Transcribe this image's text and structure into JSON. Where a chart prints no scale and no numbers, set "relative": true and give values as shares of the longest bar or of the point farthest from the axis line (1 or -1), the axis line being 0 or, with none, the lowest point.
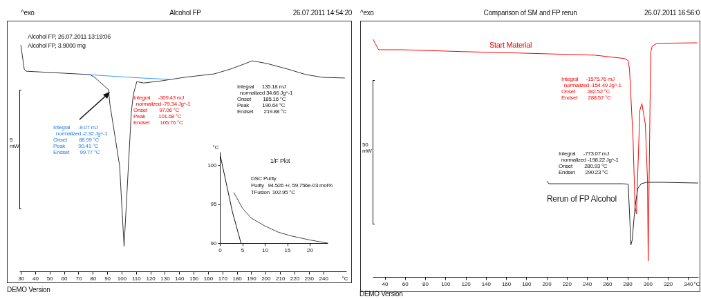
{
  "chart_data": [
    {
      "type": "line",
      "title": "Alcohol FP",
      "relative": true,
      "xlabel": "°C",
      "xlim": [
        29,
        256
      ],
      "xticks": [
        30,
        40,
        50,
        60,
        70,
        80,
        90,
        100,
        110,
        120,
        130,
        140,
        150,
        160,
        170,
        180,
        190,
        200,
        210,
        220,
        230,
        240
      ],
      "annotations": [
        "^exo",
        "26.07.2011 14:54:20",
        "Alcohol FP, 26.07.2011 13:19:06",
        "Alcohol FP, 3.9000 mg",
        "Integral      -9.07 mJ\n  normalized -2.32 Jg^-1\nOnset         88.99 °C\nPeak          90.41 °C\nEndset        99.77 °C",
        "Integral      -309.43 mJ\n  normalized -79.34 Jg^-1\nOnset         97.06 °C\nPeak          101.68 °C\nEndset        105.76 °C",
        "Integral      135.18 mJ\n  normalized 34.66 Jg^-1\nOnset         185.16 °C\nPeak          190.64 °C\nEndset        219.88 °C",
        "5\nmW",
        "DEMO Version"
      ],
      "series": [
        {
          "color": "#333333",
          "x": [
            30,
            32.4,
            33.8,
            77.9,
            81.3,
            90.9,
            91.8,
            98.6,
            101.7,
            106.7,
            108.1,
            110.5,
            115.3,
            127.3,
            143.6,
            164.2,
            175.3,
            184.8,
            190.6,
            200.9,
            215.5,
            228,
            239.5,
            255
          ],
          "values": [
            1,
            0.893,
            0.884,
            0.869,
            0.857,
            0.802,
            0.741,
            0.466,
            0.11,
            0.701,
            0.78,
            0.838,
            0.832,
            0.841,
            0.857,
            0.872,
            0.893,
            0.915,
            0.93,
            0.918,
            0.893,
            0.869,
            0.857,
            0.854
          ]
        },
        {
          "color": "#3399ff",
          "x": [
            77,
            90.9,
            113.9,
            133
          ],
          "values": [
            0.869,
            0.863,
            0.854,
            0.848
          ]
        }
      ]
    },
    {
      "type": "line",
      "title": "1/F Plot",
      "xlim": [
        0,
        24
      ],
      "xticks": [
        0,
        5,
        10,
        15,
        20
      ],
      "ylabel": "°C",
      "ylim": [
        90,
        101.7
      ],
      "yticks": [
        90,
        95,
        100
      ],
      "annotations": [
        "DSC Purity",
        "Purity   94.526 +/- 59.756e-03 mol%",
        "TFusion  102.95 °C"
      ],
      "series": [
        {
          "color": "#111111",
          "x": [
            0,
            2.8,
            4.7
          ],
          "values": [
            101.5,
            94,
            90
          ]
        },
        {
          "color": "#444444",
          "x": [
            3.1,
            5,
            7,
            10,
            13,
            16,
            20,
            24
          ],
          "values": [
            96.5,
            94.5,
            93.2,
            92.2,
            91.4,
            90.9,
            90.4,
            90
          ]
        }
      ]
    },
    {
      "type": "line",
      "title": "Comparison of SM and FP rerun",
      "relative": true,
      "xlabel": "°C",
      "xlim": [
        28,
        350
      ],
      "xticks": [
        40,
        60,
        80,
        100,
        120,
        140,
        160,
        180,
        200,
        220,
        240,
        260,
        280,
        300,
        320,
        340
      ],
      "annotations": [
        "^exo",
        "26.07.2011 16:56:0",
        "Integral      -1575.76 mJ\n  normalized -154.49 Jg^-1\nOnset         282.52 °C\nEndset        288.57 °C",
        "Integral      -773.07 mJ\n  normalized -198.22 Jg^-1\nOnset         280.93 °C\nEndset        290.23 °C",
        "50\nmW",
        "DEMO Version"
      ],
      "series": [
        {
          "name": "Start Material",
          "color": "#ff0000",
          "x": [
            28.4,
            33.9,
            57,
            116.4,
            173,
            248,
            266.4,
            277.3,
            280.7,
            282,
            285.5,
            287.5,
            288.9,
            290.2,
            292.3,
            294.3,
            297.7,
            299.8,
            300.5,
            301.1,
            302.5,
            303.2,
            304.5,
            309.3,
            348.9
          ],
          "values": [
            1,
            0.956,
            0.956,
            0.948,
            0.942,
            0.933,
            0.924,
            0.919,
            0.91,
            0.875,
            0.584,
            0.294,
            0.265,
            0.439,
            0.701,
            0.73,
            0.642,
            0.41,
            0.067,
            0.294,
            0.788,
            0.948,
            0.971,
            0.983,
            0.985
          ]
        },
        {
          "name": "Rerun of FP Alcohol",
          "color": "#222222",
          "x": [
            200.2,
            202.3,
            220.7,
            275.2,
            280.7,
            282,
            283.4,
            284.8,
            286.1,
            287.5,
            290.2,
            293.6,
            299.1,
            314.1,
            350
          ],
          "values": [
            0.404,
            0.392,
            0.392,
            0.392,
            0.39,
            0.273,
            0.134,
            0.157,
            0.227,
            0.294,
            0.372,
            0.392,
            0.398,
            0.398,
            0.395
          ]
        }
      ]
    }
  ]
}
